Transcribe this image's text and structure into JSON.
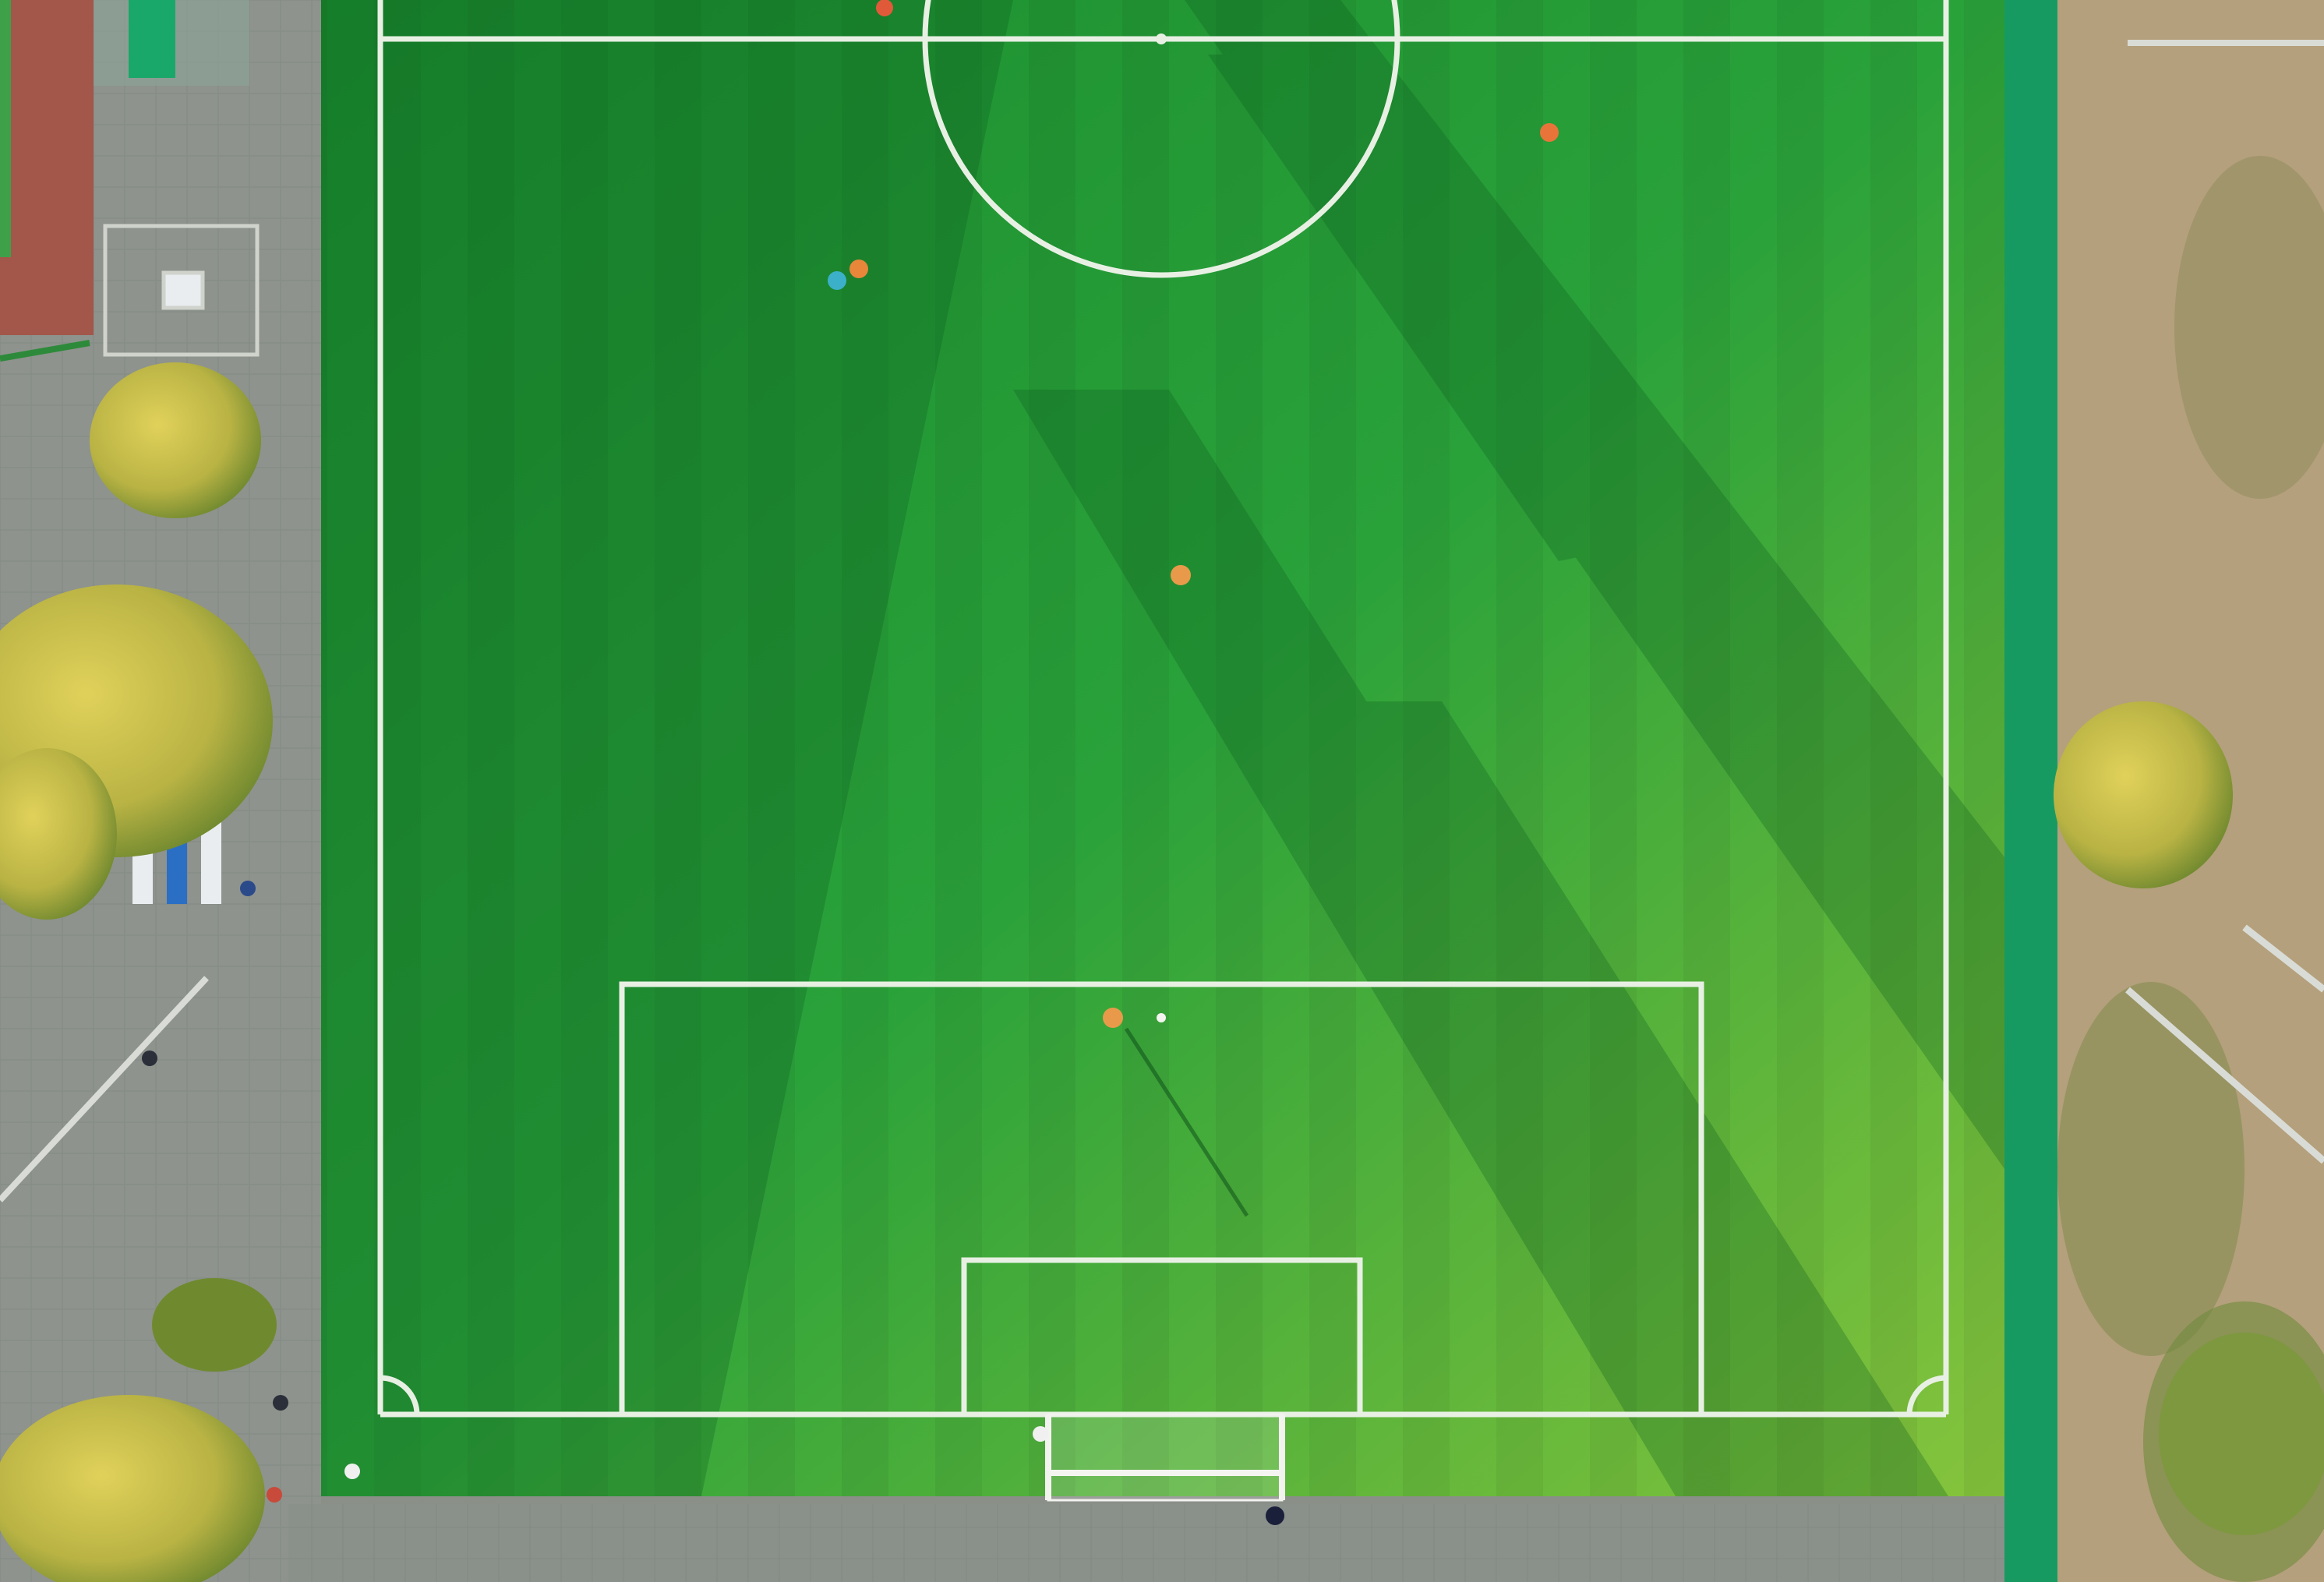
{
  "scene": {
    "description_free": true,
    "colors": {
      "pavement": "#8e938d",
      "pavement_dark": "#7c827b",
      "track": "#a2574a",
      "grass_dark": "#0f7a2c",
      "grass_mid": "#1f9a33",
      "grass_light": "#7fc23a",
      "turf_edge": "#2d8a3a",
      "lines": "#e8f0e4",
      "fence": "#1aa86a",
      "dirt": "#b4a07c",
      "dirt_dark": "#8e8a5c",
      "tree": "#c9b84a",
      "tree_dark": "#6f8a2e",
      "bench_blue": "#2a6fc4",
      "bench_white": "#e9edf0",
      "goal_white": "#f2f2ee"
    },
    "players_on_field": 6,
    "people_off_field": 7
  }
}
